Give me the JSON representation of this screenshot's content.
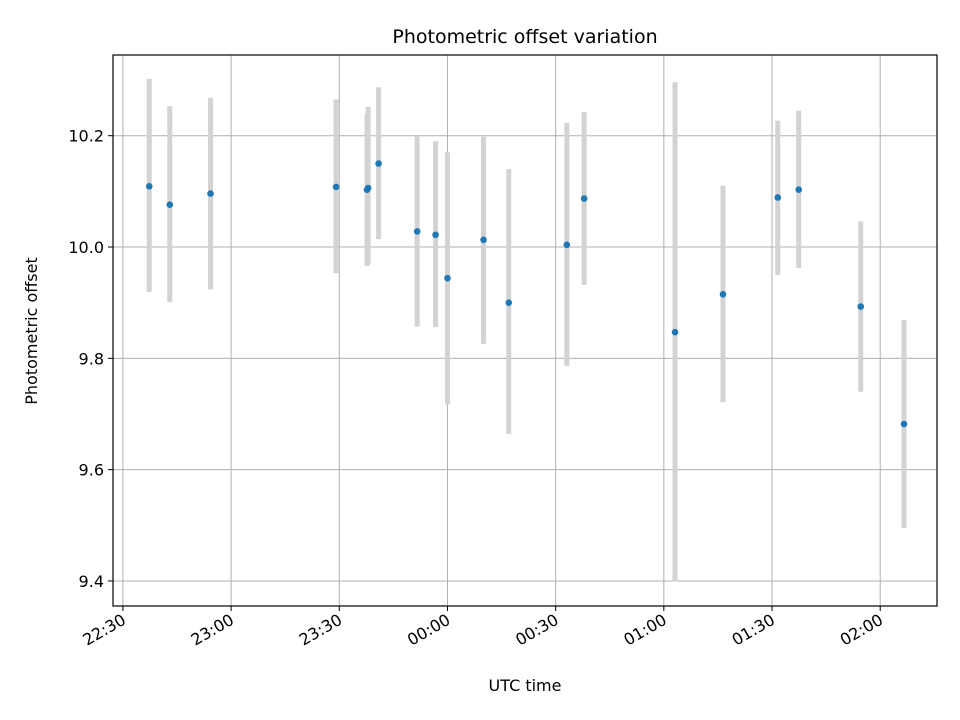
{
  "chart_data": {
    "type": "scatter",
    "title": "Photometric offset variation",
    "xlabel": "UTC time",
    "ylabel": "Photometric offset",
    "x_ticks": [
      "22:30",
      "23:00",
      "23:30",
      "00:00",
      "00:30",
      "01:00",
      "01:30",
      "02:00"
    ],
    "y_ticks": [
      "9.4",
      "9.6",
      "9.8",
      "10.0",
      "10.2"
    ],
    "y_tick_values": [
      9.4,
      9.6,
      9.8,
      10.0,
      10.2
    ],
    "xlim_minutes_from_2230": [
      -2.75,
      225.75
    ],
    "ylim": [
      9.355,
      10.345
    ],
    "grid": true,
    "marker_color": "#1f77b4",
    "errorbar_color": "#d3d3d3",
    "points": [
      {
        "t": "22:37:18",
        "y": 10.109,
        "lo": 9.919,
        "hi": 10.302
      },
      {
        "t": "22:43:00",
        "y": 10.076,
        "lo": 9.901,
        "hi": 10.253
      },
      {
        "t": "22:54:18",
        "y": 10.096,
        "lo": 9.924,
        "hi": 10.268
      },
      {
        "t": "23:29:06",
        "y": 10.108,
        "lo": 9.953,
        "hi": 10.265
      },
      {
        "t": "23:37:42",
        "y": 10.103,
        "lo": 9.966,
        "hi": 10.24
      },
      {
        "t": "23:38:00",
        "y": 10.106,
        "lo": 9.97,
        "hi": 10.252
      },
      {
        "t": "23:40:54",
        "y": 10.15,
        "lo": 10.014,
        "hi": 10.287
      },
      {
        "t": "23:51:36",
        "y": 10.028,
        "lo": 9.857,
        "hi": 10.199
      },
      {
        "t": "23:56:42",
        "y": 10.022,
        "lo": 9.856,
        "hi": 10.19
      },
      {
        "t": "00:00:00",
        "y": 9.944,
        "lo": 9.717,
        "hi": 10.17
      },
      {
        "t": "00:10:00",
        "y": 10.013,
        "lo": 9.826,
        "hi": 10.198
      },
      {
        "t": "00:17:00",
        "y": 9.9,
        "lo": 9.664,
        "hi": 10.14
      },
      {
        "t": "00:33:06",
        "y": 10.004,
        "lo": 9.786,
        "hi": 10.223
      },
      {
        "t": "00:37:54",
        "y": 10.087,
        "lo": 9.932,
        "hi": 10.243
      },
      {
        "t": "01:03:06",
        "y": 9.847,
        "lo": 9.399,
        "hi": 10.296
      },
      {
        "t": "01:16:24",
        "y": 9.915,
        "lo": 9.721,
        "hi": 10.11
      },
      {
        "t": "01:31:36",
        "y": 10.089,
        "lo": 9.95,
        "hi": 10.227
      },
      {
        "t": "01:37:24",
        "y": 10.103,
        "lo": 9.962,
        "hi": 10.245
      },
      {
        "t": "01:54:36",
        "y": 9.893,
        "lo": 9.74,
        "hi": 10.046
      },
      {
        "t": "02:06:36",
        "y": 9.682,
        "lo": 9.495,
        "hi": 9.869
      }
    ]
  }
}
